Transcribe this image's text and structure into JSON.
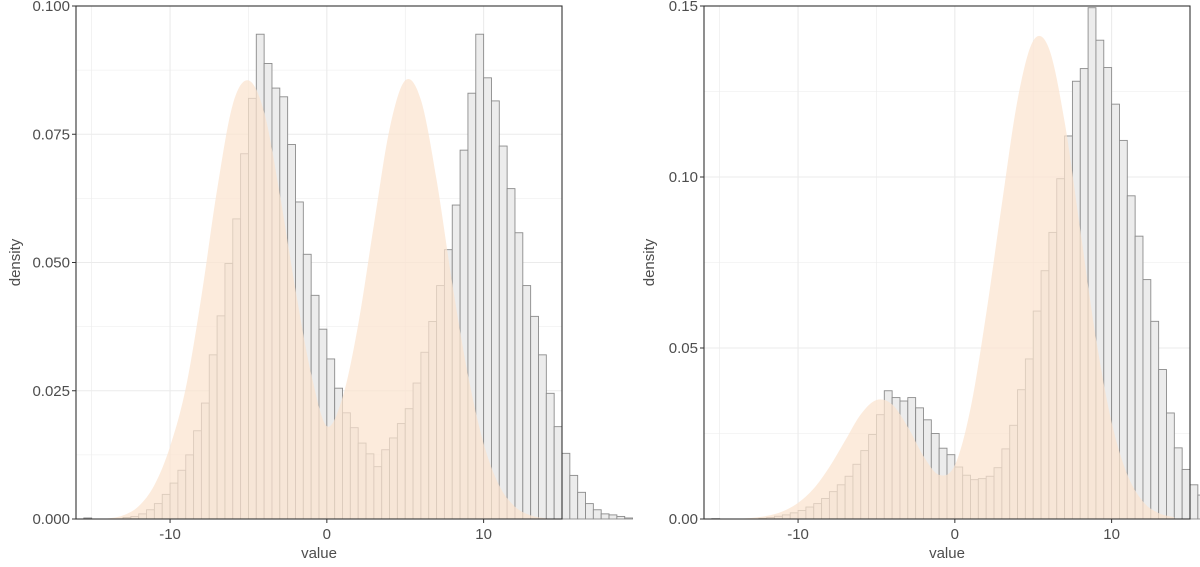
{
  "chart_data": [
    {
      "type": "bar",
      "subtype": "histogram-with-density",
      "title": "",
      "xlabel": "value",
      "ylabel": "density",
      "xlim": [
        -16,
        15
      ],
      "ylim": [
        0,
        0.1
      ],
      "x_ticks": [
        -10,
        0,
        10
      ],
      "x_tick_labels": [
        "-10",
        "0",
        "10"
      ],
      "y_ticks": [
        0,
        0.025,
        0.05,
        0.075,
        0.1
      ],
      "y_tick_labels": [
        "0.000",
        "0.025",
        "0.050",
        "0.075",
        "0.100"
      ],
      "grid": true,
      "bin_width": 0.5,
      "bins_start": -15.5,
      "histogram": [
        0.0002,
        0,
        0,
        0,
        0,
        0.0003,
        0.0005,
        0.001,
        0.0018,
        0.003,
        0.0048,
        0.007,
        0.0095,
        0.0125,
        0.0172,
        0.0226,
        0.032,
        0.0396,
        0.0498,
        0.0585,
        0.0712,
        0.082,
        0.0945,
        0.0888,
        0.084,
        0.0823,
        0.073,
        0.0618,
        0.0516,
        0.0436,
        0.037,
        0.0312,
        0.0255,
        0.0207,
        0.0178,
        0.0148,
        0.0127,
        0.0102,
        0.0135,
        0.0158,
        0.0186,
        0.0215,
        0.0265,
        0.0325,
        0.0385,
        0.0455,
        0.0525,
        0.0612,
        0.0719,
        0.083,
        0.0945,
        0.086,
        0.0815,
        0.0727,
        0.0644,
        0.0558,
        0.0455,
        0.0395,
        0.032,
        0.0245,
        0.018,
        0.0128,
        0.0085,
        0.0052,
        0.003,
        0.0018,
        0.001,
        0.0008,
        0.0005,
        0.0002
      ],
      "density": {
        "x": [
          -15,
          -14,
          -13,
          -12,
          -11,
          -10,
          -9,
          -8,
          -7,
          -6,
          -5,
          -4,
          -3,
          -2,
          -1,
          0,
          1,
          2,
          3,
          4,
          5,
          6,
          7,
          8,
          9,
          10,
          11,
          12,
          13,
          14
        ],
        "y": [
          0,
          0.0001,
          0.0007,
          0.0025,
          0.0066,
          0.0141,
          0.0255,
          0.0434,
          0.0642,
          0.0808,
          0.0855,
          0.0793,
          0.0633,
          0.0447,
          0.0283,
          0.0181,
          0.0237,
          0.0379,
          0.0573,
          0.076,
          0.0855,
          0.0817,
          0.0661,
          0.0459,
          0.0281,
          0.0147,
          0.0065,
          0.0024,
          0.0007,
          0.0001
        ]
      }
    },
    {
      "type": "bar",
      "subtype": "histogram-with-density",
      "title": "",
      "xlabel": "value",
      "ylabel": "density",
      "xlim": [
        -16,
        15
      ],
      "ylim": [
        0,
        0.15
      ],
      "x_ticks": [
        -10,
        0,
        10
      ],
      "x_tick_labels": [
        "-10",
        "0",
        "10"
      ],
      "y_ticks": [
        0,
        0.05,
        0.1,
        0.15
      ],
      "y_tick_labels": [
        "0.00",
        "0.05",
        "0.10",
        "0.15"
      ],
      "grid": true,
      "bin_width": 0.5,
      "bins_start": -15.5,
      "histogram": [
        0.0001,
        0,
        0,
        0,
        0,
        0,
        0.0002,
        0.0004,
        0.0008,
        0.0012,
        0.0018,
        0.0025,
        0.0035,
        0.0045,
        0.006,
        0.008,
        0.01,
        0.0125,
        0.016,
        0.02,
        0.0247,
        0.0305,
        0.0375,
        0.0355,
        0.0345,
        0.0355,
        0.0325,
        0.029,
        0.025,
        0.0207,
        0.0188,
        0.0152,
        0.0128,
        0.0115,
        0.0118,
        0.0125,
        0.015,
        0.0205,
        0.0274,
        0.0378,
        0.0468,
        0.0608,
        0.0726,
        0.0838,
        0.0995,
        0.112,
        0.128,
        0.1317,
        0.1495,
        0.14,
        0.132,
        0.1213,
        0.1107,
        0.0945,
        0.0827,
        0.07,
        0.0578,
        0.0437,
        0.031,
        0.0208,
        0.0145,
        0.01,
        0.007,
        0.0045,
        0.0028,
        0.0016,
        0.001,
        0.0006,
        0.0004,
        0.0002
      ],
      "density": {
        "x": [
          -15,
          -14,
          -13,
          -12,
          -11,
          -10,
          -9,
          -8,
          -7,
          -6,
          -5,
          -4,
          -3,
          -2,
          -1,
          0,
          1,
          2,
          3,
          4,
          5,
          6,
          7,
          8,
          9,
          10,
          11,
          12,
          13,
          14
        ],
        "y": [
          0,
          0.0001,
          0.0003,
          0.0009,
          0.0022,
          0.0047,
          0.0089,
          0.0152,
          0.0229,
          0.0306,
          0.0348,
          0.0335,
          0.0269,
          0.0184,
          0.0129,
          0.0157,
          0.0323,
          0.06,
          0.0921,
          0.1225,
          0.1398,
          0.1376,
          0.1162,
          0.0845,
          0.0528,
          0.0283,
          0.013,
          0.0051,
          0.0017,
          0.0005
        ]
      }
    }
  ]
}
